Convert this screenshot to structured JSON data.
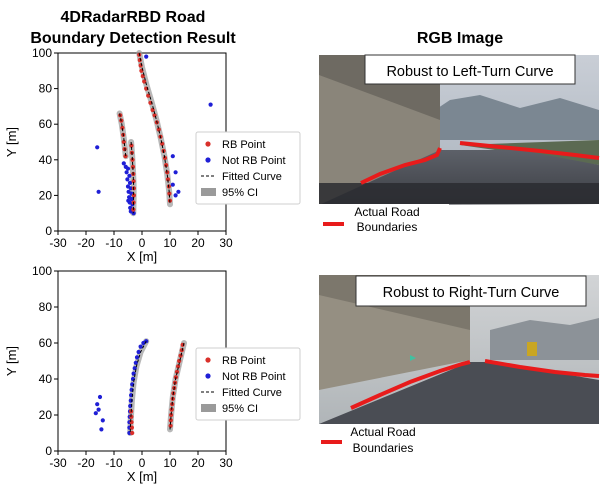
{
  "left_title": "4DRadarRBD Road\nBoundary Detection Result",
  "right_title": "RGB Image",
  "photo_top_caption": "Robust to Left-Turn Curve",
  "photo_bottom_caption": "Robust to Right-Turn Curve",
  "photo_legend_line1": "Actual Road",
  "photo_legend_line2": "Boundaries",
  "colors": {
    "rb": "#d9302a",
    "not_rb": "#1f1fd6",
    "ci": "#9a9a9a",
    "road_line": "#e81b1b"
  },
  "chart_data": [
    {
      "type": "scatter",
      "xlabel": "X [m]",
      "ylabel": "Y [m]",
      "xlim": [
        -30,
        30
      ],
      "ylim": [
        0,
        100
      ],
      "xticks": [
        -30,
        -20,
        -10,
        0,
        10,
        20,
        30
      ],
      "yticks": [
        0,
        20,
        40,
        60,
        80,
        100
      ],
      "legend": [
        "RB Point",
        "Not RB Point",
        "Fitted Curve",
        "95% CI"
      ],
      "legend_position": "right",
      "series": [
        {
          "name": "RB Point",
          "points": [
            [
              -1,
              99
            ],
            [
              -0.8,
              96
            ],
            [
              -0.5,
              93
            ],
            [
              -0.2,
              90
            ],
            [
              0.3,
              87
            ],
            [
              0.8,
              84
            ],
            [
              1.5,
              80
            ],
            [
              2.2,
              76
            ],
            [
              3,
              72
            ],
            [
              3.8,
              68
            ],
            [
              4.5,
              65
            ],
            [
              5.3,
              61
            ],
            [
              6,
              57
            ],
            [
              6.6,
              53
            ],
            [
              7.2,
              49
            ],
            [
              7.7,
              45
            ],
            [
              8.2,
              41
            ],
            [
              8.6,
              37
            ],
            [
              9,
              33
            ],
            [
              9.3,
              29
            ],
            [
              9.6,
              25
            ],
            [
              9.8,
              21
            ],
            [
              10,
              17
            ],
            [
              -7.8,
              65
            ],
            [
              -7.4,
              62
            ],
            [
              -7,
              58
            ],
            [
              -6.7,
              54
            ],
            [
              -6.5,
              50
            ],
            [
              -6.2,
              46
            ],
            [
              -5.9,
              42
            ],
            [
              -3.8,
              48
            ],
            [
              -3.6,
              44
            ],
            [
              -3.4,
              40
            ],
            [
              -3.2,
              36
            ],
            [
              -3.1,
              32
            ],
            [
              -3,
              28
            ],
            [
              -2.9,
              24
            ],
            [
              -2.9,
              20
            ],
            [
              -3,
              16
            ],
            [
              -3.1,
              12
            ]
          ]
        },
        {
          "name": "Not RB Point",
          "points": [
            [
              1.5,
              98
            ],
            [
              24.5,
              71
            ],
            [
              -16,
              47
            ],
            [
              -15.5,
              22
            ],
            [
              11,
              42
            ],
            [
              12,
              33
            ],
            [
              13,
              22
            ],
            [
              11,
              26
            ],
            [
              12,
              20
            ],
            [
              -6.5,
              38
            ],
            [
              -5,
              35
            ],
            [
              -5.5,
              33
            ],
            [
              -4.5,
              31
            ],
            [
              -5.2,
              29
            ],
            [
              -4.3,
              27
            ],
            [
              -5,
              25
            ],
            [
              -4,
              24
            ],
            [
              -4.8,
              22
            ],
            [
              -3.8,
              21
            ],
            [
              -4.6,
              19
            ],
            [
              -3.6,
              18
            ],
            [
              -4.4,
              16
            ],
            [
              -3.4,
              15
            ],
            [
              -4.2,
              13
            ],
            [
              -3.2,
              12
            ],
            [
              -4,
              11
            ],
            [
              -3,
              10
            ],
            [
              -5.8,
              36
            ],
            [
              -4.9,
              17
            ]
          ]
        }
      ],
      "fitted_curves": [
        [
          [
            -1,
            100
          ],
          [
            0,
            92
          ],
          [
            1.6,
            82
          ],
          [
            3.5,
            72
          ],
          [
            5.2,
            62
          ],
          [
            6.7,
            52
          ],
          [
            8,
            42
          ],
          [
            9,
            32
          ],
          [
            9.7,
            22
          ],
          [
            10,
            15
          ]
        ],
        [
          [
            -8,
            66
          ],
          [
            -7.2,
            60
          ],
          [
            -6.5,
            52
          ],
          [
            -5.8,
            42
          ]
        ],
        [
          [
            -3.9,
            50
          ],
          [
            -3.5,
            42
          ],
          [
            -3.2,
            34
          ],
          [
            -3,
            26
          ],
          [
            -3,
            18
          ],
          [
            -3.1,
            10
          ]
        ]
      ]
    },
    {
      "type": "scatter",
      "xlabel": "X [m]",
      "ylabel": "Y [m]",
      "xlim": [
        -30,
        30
      ],
      "ylim": [
        0,
        100
      ],
      "xticks": [
        -30,
        -20,
        -10,
        0,
        10,
        20,
        30
      ],
      "yticks": [
        0,
        20,
        40,
        60,
        80,
        100
      ],
      "legend": [
        "RB Point",
        "Not RB Point",
        "Fitted Curve",
        "95% CI"
      ],
      "legend_position": "right",
      "series": [
        {
          "name": "RB Point",
          "points": [
            [
              14.5,
              59
            ],
            [
              14.2,
              56
            ],
            [
              13.8,
              53
            ],
            [
              13.3,
              50
            ],
            [
              12.9,
              47
            ],
            [
              12.5,
              44
            ],
            [
              12.1,
              41
            ],
            [
              11.8,
              38
            ],
            [
              11.5,
              35
            ],
            [
              11.2,
              32
            ],
            [
              11,
              29
            ],
            [
              10.8,
              26
            ],
            [
              10.6,
              23
            ],
            [
              10.4,
              20
            ],
            [
              10.3,
              17
            ],
            [
              10.2,
              14
            ],
            [
              -3.5,
              10
            ],
            [
              -3.6,
              13
            ],
            [
              -3.7,
              16
            ],
            [
              -3.8,
              19
            ],
            [
              -3.9,
              22
            ]
          ]
        },
        {
          "name": "Not RB Point",
          "points": [
            [
              1.5,
              61
            ],
            [
              0.5,
              60
            ],
            [
              -0.5,
              58
            ],
            [
              -1.2,
              55
            ],
            [
              -1.8,
              52
            ],
            [
              -2.2,
              49
            ],
            [
              -2.6,
              46
            ],
            [
              -3,
              43
            ],
            [
              -3.2,
              40
            ],
            [
              -3.5,
              37
            ],
            [
              -3.7,
              34
            ],
            [
              -3.9,
              31
            ],
            [
              -4,
              28
            ],
            [
              -4.2,
              25
            ],
            [
              -4.3,
              22
            ],
            [
              -4.4,
              19
            ],
            [
              -4.5,
              16
            ],
            [
              -4.5,
              13
            ],
            [
              -4.5,
              10
            ],
            [
              -15,
              30
            ],
            [
              -16,
              26
            ],
            [
              -15.5,
              23
            ],
            [
              -16.5,
              21
            ],
            [
              -14,
              17
            ],
            [
              -14.5,
              12
            ]
          ]
        }
      ],
      "fitted_curves": [
        [
          [
            15,
            60
          ],
          [
            13.5,
            50
          ],
          [
            12,
            40
          ],
          [
            11,
            30
          ],
          [
            10.4,
            20
          ],
          [
            10,
            12
          ]
        ],
        [
          [
            1.5,
            61
          ],
          [
            -0.5,
            55
          ],
          [
            -2,
            47
          ],
          [
            -3,
            38
          ],
          [
            -3.6,
            28
          ],
          [
            -4,
            18
          ],
          [
            -4.2,
            10
          ]
        ]
      ]
    }
  ]
}
